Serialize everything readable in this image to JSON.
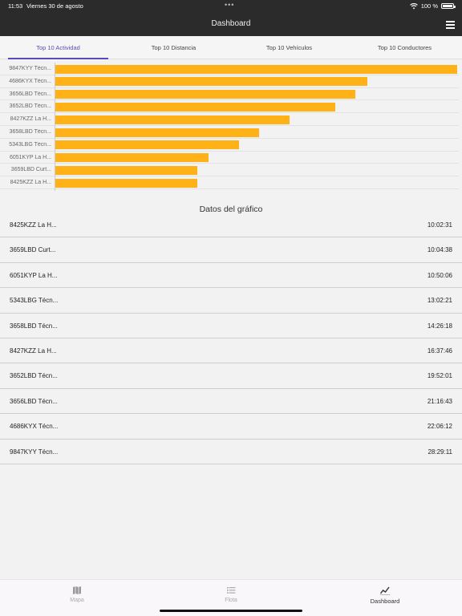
{
  "status": {
    "time": "11:53",
    "date": "Viernes 30 de agosto",
    "battery": "100 %"
  },
  "header": {
    "title": "Dashboard",
    "menu_icon": "hamburger-icon"
  },
  "tabs": [
    {
      "label": "Top 10 Actividad",
      "active": true
    },
    {
      "label": "Top 10 Distancia",
      "active": false
    },
    {
      "label": "Top 10 Vehículos",
      "active": false
    },
    {
      "label": "Top 10 Conductores",
      "active": false
    }
  ],
  "chart_data": {
    "type": "bar",
    "orientation": "horizontal",
    "color": "#ffb118",
    "categories": [
      "9847KYY Técn...",
      "4686KYX Técn...",
      "3656LBD Técn...",
      "3652LBD Técn...",
      "8427KZZ La H...",
      "3658LBD Técn...",
      "5343LBG Técn...",
      "6051KYP La H...",
      "3659LBD Curt...",
      "8425KZZ La H..."
    ],
    "values": [
      28.49,
      22.1,
      21.28,
      19.87,
      16.63,
      14.44,
      13.04,
      10.84,
      10.07,
      10.04
    ],
    "value_unit": "hours"
  },
  "section": {
    "title": "Datos del gráfico"
  },
  "list": [
    {
      "name": "8425KZZ La H...",
      "value": "10:02:31"
    },
    {
      "name": "3659LBD Curt...",
      "value": "10:04:38"
    },
    {
      "name": "6051KYP La H...",
      "value": "10:50:06"
    },
    {
      "name": "5343LBG Técn...",
      "value": "13:02:21"
    },
    {
      "name": "3658LBD Técn...",
      "value": "14:26:18"
    },
    {
      "name": "8427KZZ La H...",
      "value": "16:37:46"
    },
    {
      "name": "3652LBD Técn...",
      "value": "19:52:01"
    },
    {
      "name": "3656LBD Técn...",
      "value": "21:16:43"
    },
    {
      "name": "4686KYX Técn...",
      "value": "22:06:12"
    },
    {
      "name": "9847KYY Técn...",
      "value": "28:29:11"
    }
  ],
  "bottom_nav": [
    {
      "label": "Mapa",
      "icon": "map-icon",
      "active": false
    },
    {
      "label": "Flota",
      "icon": "list-icon",
      "active": false
    },
    {
      "label": "Dashboard",
      "icon": "chart-icon",
      "active": true
    }
  ]
}
